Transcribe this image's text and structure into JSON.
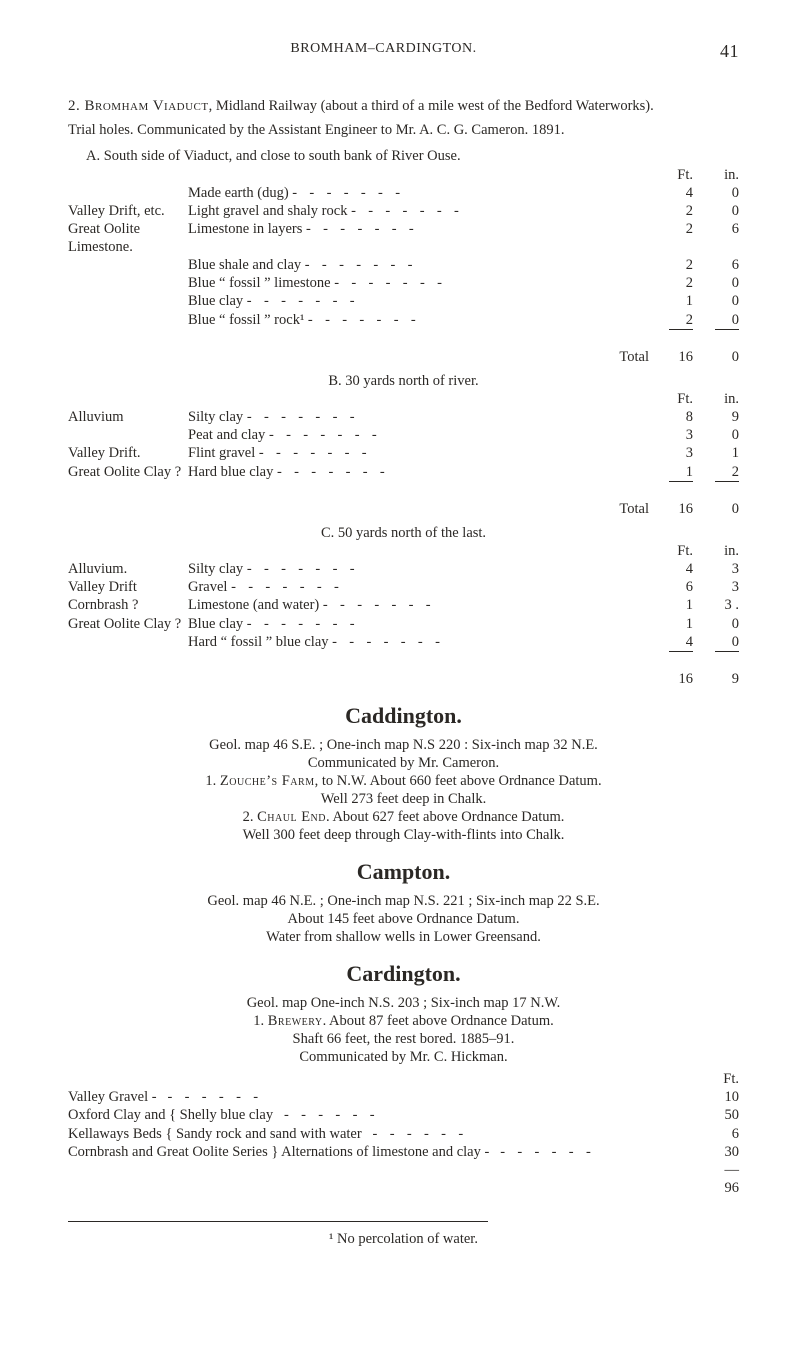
{
  "running_head": {
    "title": "BROMHAM–CARDINGTON.",
    "page": "41"
  },
  "sec2": {
    "heading": "2. Bromham Viaduct, Midland Railway (about a third of a mile west of the Bedford Waterworks).",
    "trial_line": "Trial holes.  Communicated by the Assistant Engineer to Mr. A. C. G. Cameron.  1891.",
    "A_head": "A.  South side of Viaduct, and close to south bank of River Ouse.",
    "ft_in_head": {
      "ft": "Ft.",
      "in": "in."
    },
    "A_rows": [
      {
        "lbl": "",
        "mid": "Made earth (dug)",
        "ft": "4",
        "in": "0"
      },
      {
        "lbl": "Valley Drift, etc.",
        "mid": "Light gravel and shaly rock",
        "ft": "2",
        "in": "0"
      },
      {
        "lbl": "Great Oolite Limestone.",
        "mid": "Limestone in layers",
        "ft": "2",
        "in": "6"
      },
      {
        "lbl": "",
        "mid": "Blue shale and clay",
        "ft": "2",
        "in": "6"
      },
      {
        "lbl": "",
        "mid": "Blue “ fossil ” limestone",
        "ft": "2",
        "in": "0"
      },
      {
        "lbl": "",
        "mid": "Blue clay",
        "ft": "1",
        "in": "0"
      },
      {
        "lbl": "",
        "mid": "Blue “ fossil ” rock¹",
        "ft": "2",
        "in": "0"
      }
    ],
    "A_total": {
      "label": "Total",
      "ft": "16",
      "in": "0"
    },
    "B_head": "B.  30 yards north of river.",
    "B_rows": [
      {
        "lbl": "Alluvium",
        "mid": "Silty clay",
        "ft": "8",
        "in": "9"
      },
      {
        "lbl": "",
        "mid": "Peat and clay",
        "ft": "3",
        "in": "0"
      },
      {
        "lbl": "Valley Drift.",
        "mid": "Flint gravel",
        "ft": "3",
        "in": "1"
      },
      {
        "lbl": "Great Oolite Clay ?",
        "mid": "Hard blue clay",
        "ft": "1",
        "in": "2"
      }
    ],
    "B_total": {
      "label": "Total",
      "ft": "16",
      "in": "0"
    },
    "C_head": "C.  50 yards north of the last.",
    "C_rows": [
      {
        "lbl": "Alluvium.",
        "mid": "Silty clay",
        "ft": "4",
        "in": "3"
      },
      {
        "lbl": "Valley Drift",
        "mid": "Gravel",
        "ft": "6",
        "in": "3"
      },
      {
        "lbl": "Cornbrash ?",
        "mid": "Limestone (and water)",
        "ft": "1",
        "in": "3 ."
      },
      {
        "lbl": "Great Oolite Clay ?",
        "mid": "Blue clay",
        "ft": "1",
        "in": "0"
      },
      {
        "lbl": "",
        "mid": "Hard “ fossil ” blue clay",
        "ft": "4",
        "in": "0"
      }
    ],
    "C_total": {
      "label": "",
      "ft": "16",
      "in": "9"
    }
  },
  "caddington": {
    "title": "Caddington.",
    "lines": [
      "Geol. map 46 S.E. ; One-inch map N.S  220 : Six-inch map 32 N.E.",
      "Communicated by Mr. Cameron.",
      "1. Zouche’s Farm, to N.W.   About 660 feet above Ordnance Datum.",
      "Well 273 feet deep in Chalk.",
      "2. Chaul End.   About 627 feet above Ordnance Datum.",
      "Well 300 feet deep through Clay-with-flints into Chalk."
    ]
  },
  "campton": {
    "title": "Campton.",
    "lines": [
      "Geol. map 46 N.E. ;  One-inch map N.S. 221 ;  Six-inch map 22 S.E.",
      "About 145 feet above Ordnance Datum.",
      "Water from shallow wells in Lower Greensand."
    ]
  },
  "cardington": {
    "title": "Cardington.",
    "lines": [
      "Geol. map One-inch N.S. 203 ;  Six-inch map 17 N.W.",
      "1.  Brewery.   About 87 feet above Ordnance Datum.",
      "Shaft 66 feet, the rest bored.   1885–91.",
      "Communicated by Mr. C. Hickman."
    ],
    "ft_head": "Ft.",
    "rows": [
      {
        "d": "Valley Gravel  -",
        "v": "10"
      },
      {
        "d": "Oxford Clay and { Shelly blue clay",
        "v": "50"
      },
      {
        "d": "Kellaways Beds { Sandy rock and sand with water",
        "v": "6"
      },
      {
        "d": "Cornbrash and Great Oolite Series } Alternations of limestone and clay  -",
        "v": "30"
      }
    ],
    "total": "96"
  },
  "footnote": "¹ No percolation of water."
}
